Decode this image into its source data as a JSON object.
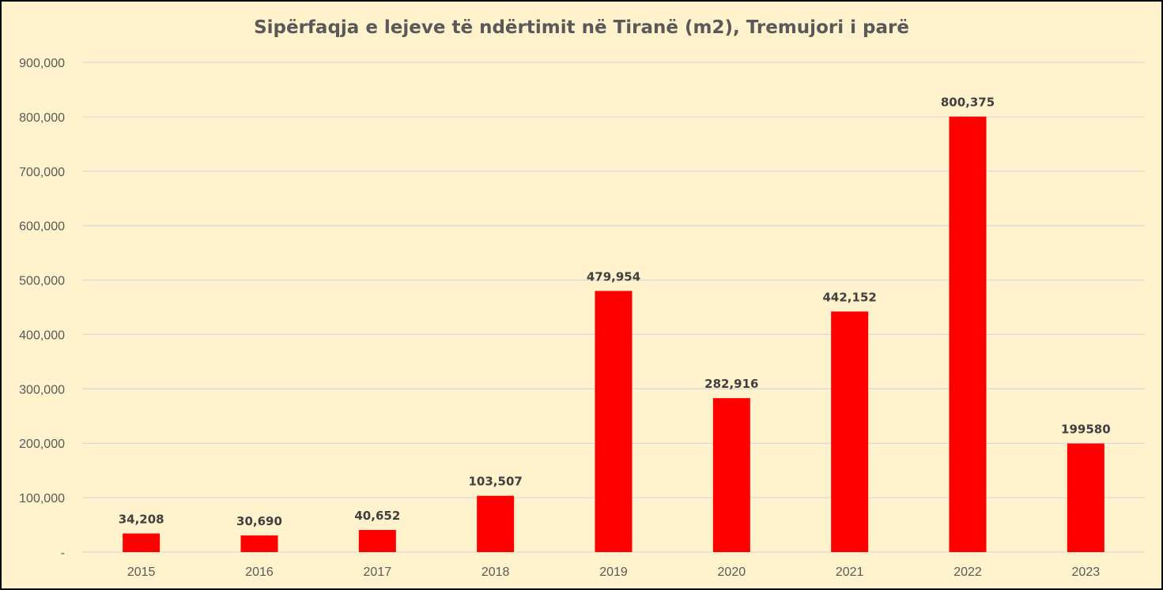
{
  "chart_data": {
    "type": "bar",
    "title": "Sipërfaqja e lejeve të ndërtimit në Tiranë (m2), Tremujori i parë",
    "xlabel": "",
    "ylabel": "",
    "categories": [
      "2015",
      "2016",
      "2017",
      "2018",
      "2019",
      "2020",
      "2021",
      "2022",
      "2023"
    ],
    "values": [
      34208,
      30690,
      40652,
      103507,
      479954,
      282916,
      442152,
      800375,
      199580
    ],
    "data_labels": [
      "34,208",
      "30,690",
      "40,652",
      "103,507",
      "479,954",
      "282,916",
      "442,152",
      "800,375",
      "199580"
    ],
    "ylim": [
      0,
      900000
    ],
    "y_ticks": [
      0,
      100000,
      200000,
      300000,
      400000,
      500000,
      600000,
      700000,
      800000,
      900000
    ],
    "y_tick_labels": [
      "-",
      "100,000",
      "200,000",
      "300,000",
      "400,000",
      "500,000",
      "600,000",
      "700,000",
      "800,000",
      "900,000"
    ],
    "grid": true,
    "legend": "none",
    "colors": {
      "bar": "#FF0000",
      "background": "#FFF2CC",
      "grid": "#D9D9D9",
      "axis_text": "#595959",
      "data_label": "#404040"
    }
  }
}
